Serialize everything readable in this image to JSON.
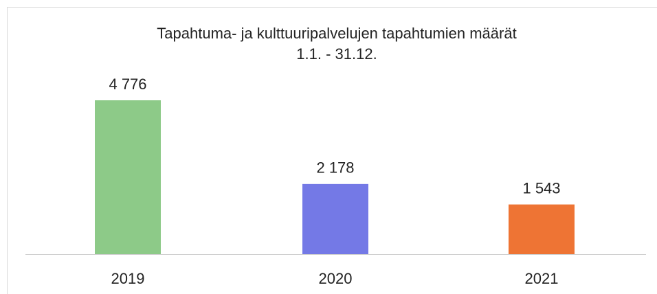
{
  "chart_data": {
    "type": "bar",
    "title": "Tapahtuma- ja kulttuuripalvelujen tapahtumien määrät",
    "subtitle": "1.1. - 31.12.",
    "categories": [
      "2019",
      "2020",
      "2021"
    ],
    "values": [
      4776,
      2178,
      1543
    ],
    "value_labels": [
      "4 776",
      "2 178",
      "1 543"
    ],
    "colors": [
      "#8dca88",
      "#7479e6",
      "#ee7434"
    ]
  }
}
